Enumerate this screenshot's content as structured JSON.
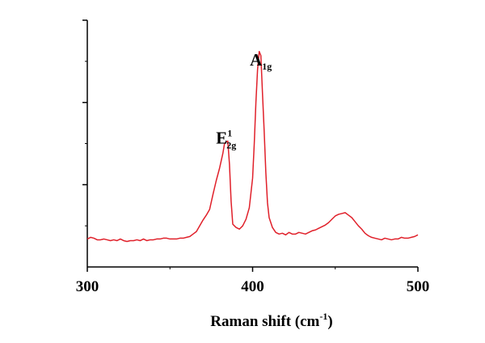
{
  "chart_data": {
    "type": "line",
    "title": "",
    "xlabel": "Raman shift (cm",
    "xlabel_superscript": "-1",
    "xlabel_suffix": ")",
    "ylabel": "",
    "xlim": [
      300,
      500
    ],
    "ylim": [
      0,
      300
    ],
    "x_ticks": [
      300,
      400,
      500
    ],
    "y_tick_labels_shown": false,
    "grid": false,
    "legend": "none",
    "annotations": [
      {
        "base": "E",
        "superscript": "1",
        "subscript": "2g",
        "x": 384,
        "y": 150
      },
      {
        "base": "A",
        "subscript": "1g",
        "x": 405,
        "y": 245
      }
    ],
    "series": [
      {
        "color": "#e0202a",
        "x": [
          300,
          302,
          304,
          306,
          308,
          310,
          312,
          314,
          316,
          318,
          320,
          322,
          324,
          326,
          328,
          330,
          332,
          334,
          336,
          338,
          340,
          342,
          344,
          346,
          348,
          350,
          352,
          354,
          356,
          358,
          360,
          362,
          364,
          366,
          368,
          370,
          372,
          374,
          376,
          378,
          380,
          382,
          383,
          384,
          385,
          386,
          387,
          388,
          390,
          392,
          394,
          396,
          398,
          400,
          401,
          402,
          403,
          404,
          405,
          406,
          407,
          408,
          409,
          410,
          412,
          414,
          416,
          418,
          420,
          422,
          424,
          426,
          428,
          430,
          432,
          434,
          436,
          438,
          440,
          442,
          444,
          446,
          448,
          450,
          452,
          454,
          456,
          458,
          460,
          462,
          464,
          466,
          468,
          470,
          472,
          474,
          476,
          478,
          480,
          482,
          484,
          486,
          488,
          490,
          492,
          494,
          496,
          498,
          500
        ],
        "values": [
          34,
          36,
          35,
          33,
          33,
          34,
          33,
          32,
          33,
          32,
          34,
          32,
          31,
          32,
          32,
          33,
          32,
          34,
          32,
          33,
          33,
          34,
          34,
          35,
          35,
          34,
          34,
          34,
          35,
          35,
          36,
          37,
          40,
          43,
          50,
          57,
          63,
          70,
          88,
          105,
          120,
          138,
          150,
          152,
          153,
          125,
          80,
          52,
          48,
          46,
          50,
          58,
          72,
          108,
          150,
          200,
          240,
          262,
          257,
          210,
          165,
          115,
          78,
          60,
          48,
          42,
          40,
          41,
          39,
          42,
          40,
          40,
          42,
          41,
          40,
          42,
          44,
          45,
          47,
          49,
          51,
          54,
          58,
          62,
          64,
          65,
          66,
          63,
          60,
          55,
          50,
          46,
          41,
          38,
          36,
          35,
          34,
          33,
          35,
          34,
          33,
          34,
          34,
          36,
          35,
          35,
          36,
          37,
          39
        ]
      }
    ]
  }
}
